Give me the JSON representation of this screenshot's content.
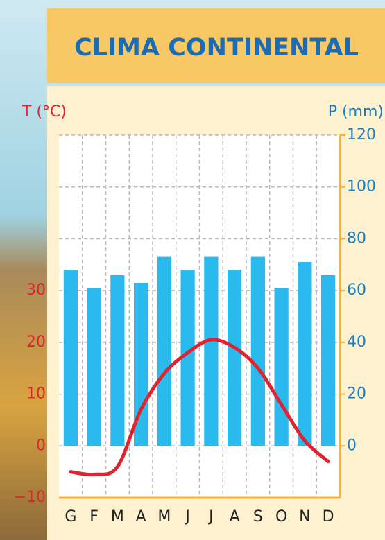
{
  "chart_data": {
    "type": "bar",
    "title": "CLIMA CONTINENTAL",
    "y_label": "T (°C)",
    "y2_label": "P (mm)",
    "categories": [
      "G",
      "F",
      "M",
      "A",
      "M",
      "J",
      "J",
      "A",
      "S",
      "O",
      "N",
      "D"
    ],
    "series": [
      {
        "name": "P (mm)",
        "type": "bar",
        "axis": "y2",
        "color": "#2bbaee",
        "values": [
          68,
          61,
          66,
          63,
          73,
          68,
          73,
          68,
          73,
          61,
          71,
          66
        ]
      },
      {
        "name": "T (°C)",
        "type": "line",
        "axis": "y",
        "color": "#e0232f",
        "values": [
          -5,
          -5.5,
          -4,
          7,
          14,
          18,
          20.5,
          19,
          15,
          8,
          1,
          -3
        ]
      }
    ],
    "ylim": [
      -10,
      60
    ],
    "yticks": [
      {
        "value": -10,
        "label": "−10"
      },
      0,
      10,
      20,
      30
    ],
    "y2lim": [
      -20,
      120
    ],
    "y2ticks": [
      0,
      20,
      40,
      60,
      80,
      100,
      120
    ],
    "grid": true
  }
}
